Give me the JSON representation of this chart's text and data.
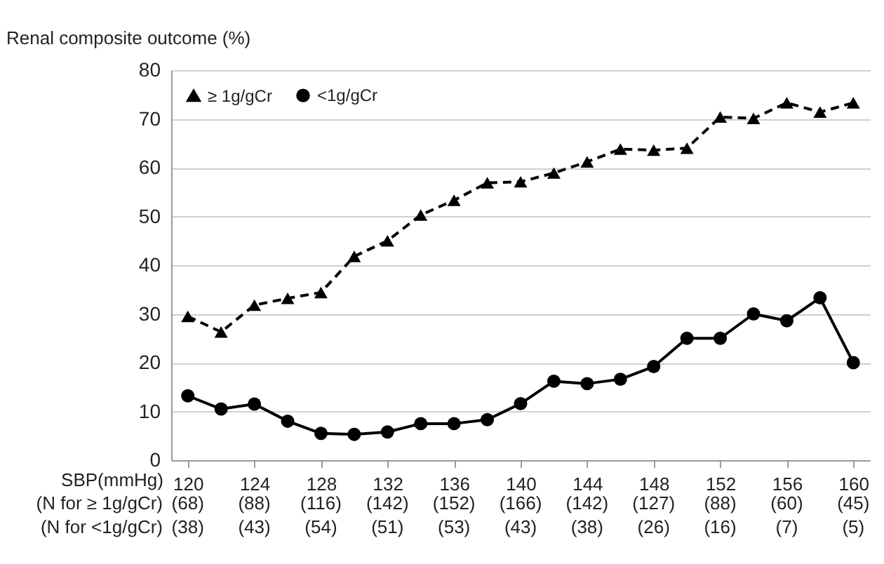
{
  "chart_data": {
    "type": "line",
    "ylabel": "Renal composite outcome (%)",
    "xlabel": "SBP(mmHg)",
    "x": [
      120,
      122,
      124,
      126,
      128,
      130,
      132,
      134,
      136,
      138,
      140,
      142,
      144,
      146,
      148,
      150,
      152,
      154,
      156,
      158,
      160
    ],
    "series": [
      {
        "name": "≥ 1g/gCr",
        "color": "#000000",
        "marker": "triangle",
        "line_style": "dashed",
        "values": [
          29.5,
          26.3,
          31.8,
          33.2,
          34.4,
          41.8,
          45,
          50.3,
          53.3,
          56.9,
          57.1,
          58.9,
          61.2,
          63.8,
          63.6,
          64,
          70.4,
          70.1,
          73.3,
          71.4,
          73.3
        ]
      },
      {
        "name": "<1g/gCr",
        "color": "#000000",
        "marker": "circle",
        "line_style": "solid",
        "values": [
          13.2,
          10.5,
          11.5,
          8,
          5.5,
          5.3,
          5.8,
          7.5,
          7.5,
          8.3,
          11.6,
          16.2,
          15.7,
          16.6,
          19.2,
          25,
          25,
          30,
          28.6,
          33.3,
          20
        ]
      }
    ],
    "xlim": [
      119,
      161
    ],
    "xticks": [
      120,
      124,
      128,
      132,
      136,
      140,
      144,
      148,
      152,
      156,
      160
    ],
    "ylim": [
      0,
      80
    ],
    "yticks": [
      0,
      10,
      20,
      30,
      40,
      50,
      60,
      70,
      80
    ],
    "grid": "y",
    "legend": "top left",
    "annotations": [
      "(N for ≥ 1g/gCr)",
      "(N for <1g/gCr)",
      "(68)",
      "(88)",
      "(116)",
      "(142)",
      "(152)",
      "(166)",
      "(142)",
      "(127)",
      "(88)",
      "(60)",
      "(45)",
      "(38)",
      "(43)",
      "(54)",
      "(51)",
      "(53)",
      "(43)",
      "(38)",
      "(26)",
      "(16)",
      "(7)",
      "(5)"
    ]
  }
}
